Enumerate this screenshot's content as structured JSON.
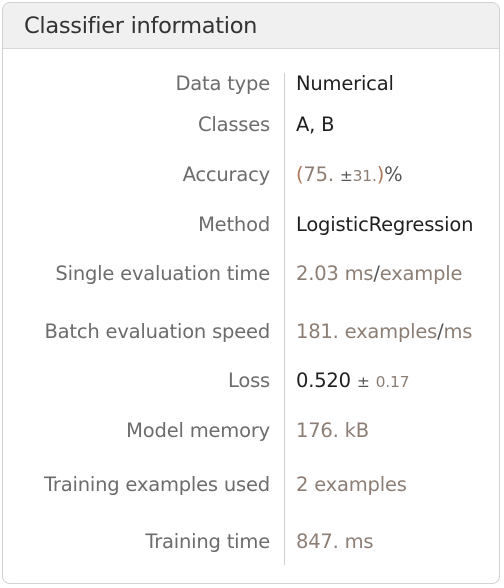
{
  "panel": {
    "title": "Classifier information"
  },
  "rows": {
    "data_type": {
      "label": "Data type",
      "value": "Numerical"
    },
    "classes": {
      "label": "Classes",
      "value": "A, B"
    },
    "accuracy": {
      "label": "Accuracy",
      "open_paren": "(",
      "value": "75.",
      "pm": "±",
      "error": "31.",
      "close_paren": ")",
      "unit": "%"
    },
    "method": {
      "label": "Method",
      "value": "LogisticRegression"
    },
    "single_eval_time": {
      "label": "Single evaluation time",
      "value": "2.03",
      "unit": "ms",
      "slash": "/",
      "per": "example"
    },
    "batch_eval_speed": {
      "label": "Batch evaluation speed",
      "value": "181.",
      "unit": "examples",
      "slash": "/",
      "per": "ms"
    },
    "loss": {
      "label": "Loss",
      "value": "0.520",
      "pm": "±",
      "error": "0.17"
    },
    "model_memory": {
      "label": "Model memory",
      "value": "176.",
      "unit": "kB"
    },
    "training_examples": {
      "label": "Training examples used",
      "value": "2",
      "unit": "examples"
    },
    "training_time": {
      "label": "Training time",
      "value": "847.",
      "unit": "ms"
    }
  }
}
